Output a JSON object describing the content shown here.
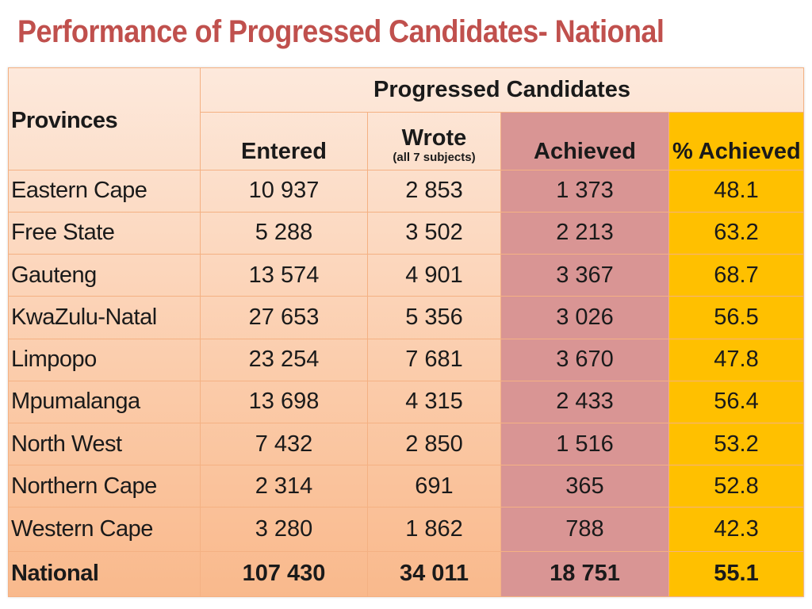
{
  "title": "Performance of Progressed Candidates- National",
  "table": {
    "header": {
      "provinces": "Provinces",
      "group": "Progressed Candidates",
      "entered": "Entered",
      "wrote": "Wrote",
      "wrote_sub": "(all 7 subjects)",
      "achieved": "Achieved",
      "pct_achieved": "% Achieved"
    },
    "rows": [
      {
        "province": "Eastern Cape",
        "entered": "10 937",
        "wrote": "2 853",
        "achieved": "1 373",
        "pct": "48.1"
      },
      {
        "province": "Free State",
        "entered": "5 288",
        "wrote": "3 502",
        "achieved": "2 213",
        "pct": "63.2"
      },
      {
        "province": "Gauteng",
        "entered": "13 574",
        "wrote": "4 901",
        "achieved": "3 367",
        "pct": "68.7"
      },
      {
        "province": "KwaZulu-Natal",
        "entered": "27 653",
        "wrote": "5 356",
        "achieved": "3 026",
        "pct": "56.5"
      },
      {
        "province": "Limpopo",
        "entered": "23 254",
        "wrote": "7 681",
        "achieved": "3 670",
        "pct": "47.8"
      },
      {
        "province": "Mpumalanga",
        "entered": "13 698",
        "wrote": "4 315",
        "achieved": "2 433",
        "pct": "56.4"
      },
      {
        "province": "North West",
        "entered": "7 432",
        "wrote": "2 850",
        "achieved": "1 516",
        "pct": "53.2"
      },
      {
        "province": "Northern Cape",
        "entered": "2 314",
        "wrote": "691",
        "achieved": "365",
        "pct": "52.8"
      },
      {
        "province": "Western Cape",
        "entered": "3 280",
        "wrote": "1 862",
        "achieved": "788",
        "pct": "42.3"
      }
    ],
    "total": {
      "province": "National",
      "entered": "107 430",
      "wrote": "34 011",
      "achieved": "18 751",
      "pct": "55.1"
    }
  },
  "colors": {
    "title": "#c0504d",
    "achieved_bg": "#d99594",
    "pct_bg": "#ffc000",
    "border": "#f4b183"
  }
}
